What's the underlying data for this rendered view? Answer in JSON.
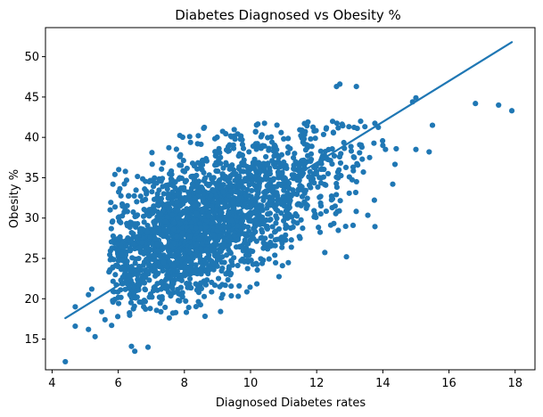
{
  "chart_data": {
    "type": "scatter",
    "title": "Diabetes Diagnosed vs Obesity %",
    "xlabel": "Diagnosed Diabetes rates",
    "ylabel": "Obesity %",
    "xlim": [
      3.8,
      18.6
    ],
    "ylim": [
      11.2,
      53.6
    ],
    "xticks": [
      4,
      6,
      8,
      10,
      12,
      14,
      16,
      18
    ],
    "yticks": [
      15,
      20,
      25,
      30,
      35,
      40,
      45,
      50
    ],
    "grid": false,
    "color": "#1f77b4",
    "point_count": 2200,
    "cluster": {
      "x_mean": 8.6,
      "x_sd": 1.55,
      "x_min": 5.7,
      "x_max": 14.5,
      "y_mean": 29.5,
      "y_sd": 5.2,
      "y_min": 17.5,
      "y_max": 42,
      "correlation": 0.55
    },
    "outliers": [
      {
        "x": 4.4,
        "y": 12.2
      },
      {
        "x": 4.7,
        "y": 16.6
      },
      {
        "x": 4.7,
        "y": 19.0
      },
      {
        "x": 5.1,
        "y": 16.2
      },
      {
        "x": 5.1,
        "y": 20.5
      },
      {
        "x": 5.2,
        "y": 21.2
      },
      {
        "x": 5.3,
        "y": 15.3
      },
      {
        "x": 5.5,
        "y": 18.4
      },
      {
        "x": 5.6,
        "y": 17.4
      },
      {
        "x": 5.8,
        "y": 16.7
      },
      {
        "x": 5.9,
        "y": 35.4
      },
      {
        "x": 6.4,
        "y": 14.1
      },
      {
        "x": 6.5,
        "y": 13.5
      },
      {
        "x": 6.9,
        "y": 14.0
      },
      {
        "x": 12.6,
        "y": 46.3
      },
      {
        "x": 12.7,
        "y": 46.6
      },
      {
        "x": 13.2,
        "y": 46.3
      },
      {
        "x": 14.3,
        "y": 34.2
      },
      {
        "x": 14.9,
        "y": 44.4
      },
      {
        "x": 15.0,
        "y": 44.9
      },
      {
        "x": 15.0,
        "y": 38.5
      },
      {
        "x": 15.4,
        "y": 38.2
      },
      {
        "x": 15.5,
        "y": 41.5
      },
      {
        "x": 16.8,
        "y": 44.2
      },
      {
        "x": 17.5,
        "y": 44.0
      },
      {
        "x": 17.9,
        "y": 43.3
      },
      {
        "x": 13.1,
        "y": 29.1
      },
      {
        "x": 12.9,
        "y": 25.2
      },
      {
        "x": 13.6,
        "y": 37.5
      },
      {
        "x": 14.0,
        "y": 39.0
      }
    ],
    "regression": {
      "x": [
        4.4,
        17.9
      ],
      "y": [
        17.6,
        51.8
      ]
    }
  }
}
